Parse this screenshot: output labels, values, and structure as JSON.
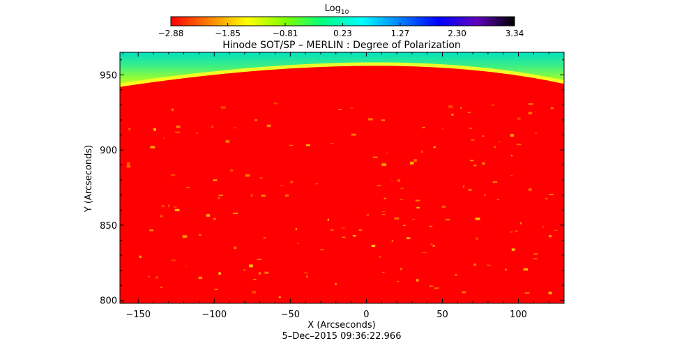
{
  "chart_data": {
    "type": "heatmap",
    "title": "Hinode SOT/SP – MERLIN : Degree of Polarization",
    "xlabel": "X (Arcseconds)",
    "ylabel": "Y (Arcseconds)",
    "xlim": [
      -162,
      130
    ],
    "ylim": [
      798,
      965
    ],
    "x_ticks": [
      -150,
      -100,
      -50,
      0,
      50,
      100
    ],
    "y_ticks": [
      800,
      850,
      900,
      950
    ],
    "x_tick_labels": [
      "−150",
      "−100",
      "−50",
      "0",
      "50",
      "100"
    ],
    "y_tick_labels": [
      "800",
      "850",
      "900",
      "950"
    ],
    "footer": "5–Dec–2015 09:36:22.966",
    "limb": {
      "y_at_left": 942,
      "y_at_center": 956,
      "y_at_right": 944
    },
    "colorbar": {
      "label_main": "Log",
      "label_sub": "10",
      "ticks": [
        -2.88,
        -1.85,
        -0.81,
        0.23,
        1.27,
        2.3,
        3.34
      ],
      "tick_labels": [
        "−2.88",
        "−1.85",
        "−0.81",
        "0.23",
        "1.27",
        "2.30",
        "3.34"
      ],
      "range": [
        -2.88,
        3.34
      ],
      "colors": [
        "#ff0000",
        "#ff8000",
        "#ffff00",
        "#80ff00",
        "#00ff80",
        "#00ffff",
        "#0080ff",
        "#0000ff",
        "#6000c0",
        "#000000"
      ]
    }
  }
}
